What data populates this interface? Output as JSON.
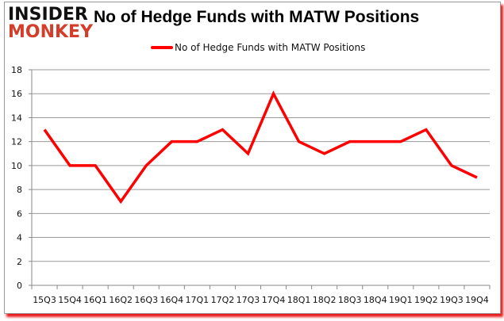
{
  "logo": {
    "line1": "INSIDER",
    "line2": "MONKEY"
  },
  "chart_data": {
    "type": "line",
    "title": "No of Hedge Funds with MATW Positions",
    "xlabel": "",
    "ylabel": "",
    "categories": [
      "15Q3",
      "15Q4",
      "16Q1",
      "16Q2",
      "16Q3",
      "16Q4",
      "17Q1",
      "17Q2",
      "17Q3",
      "17Q4",
      "18Q1",
      "18Q2",
      "18Q3",
      "18Q4",
      "19Q1",
      "19Q2",
      "19Q3",
      "19Q4"
    ],
    "series": [
      {
        "name": "No of Hedge Funds with MATW Positions",
        "color": "#ff0000",
        "values": [
          13,
          10,
          10,
          7,
          10,
          12,
          12,
          13,
          11,
          16,
          12,
          11,
          12,
          12,
          12,
          13,
          10,
          9
        ]
      }
    ],
    "ylim": [
      0,
      18
    ],
    "yticks": [
      0,
      2,
      4,
      6,
      8,
      10,
      12,
      14,
      16,
      18
    ],
    "grid": true,
    "legend": "top-center"
  }
}
